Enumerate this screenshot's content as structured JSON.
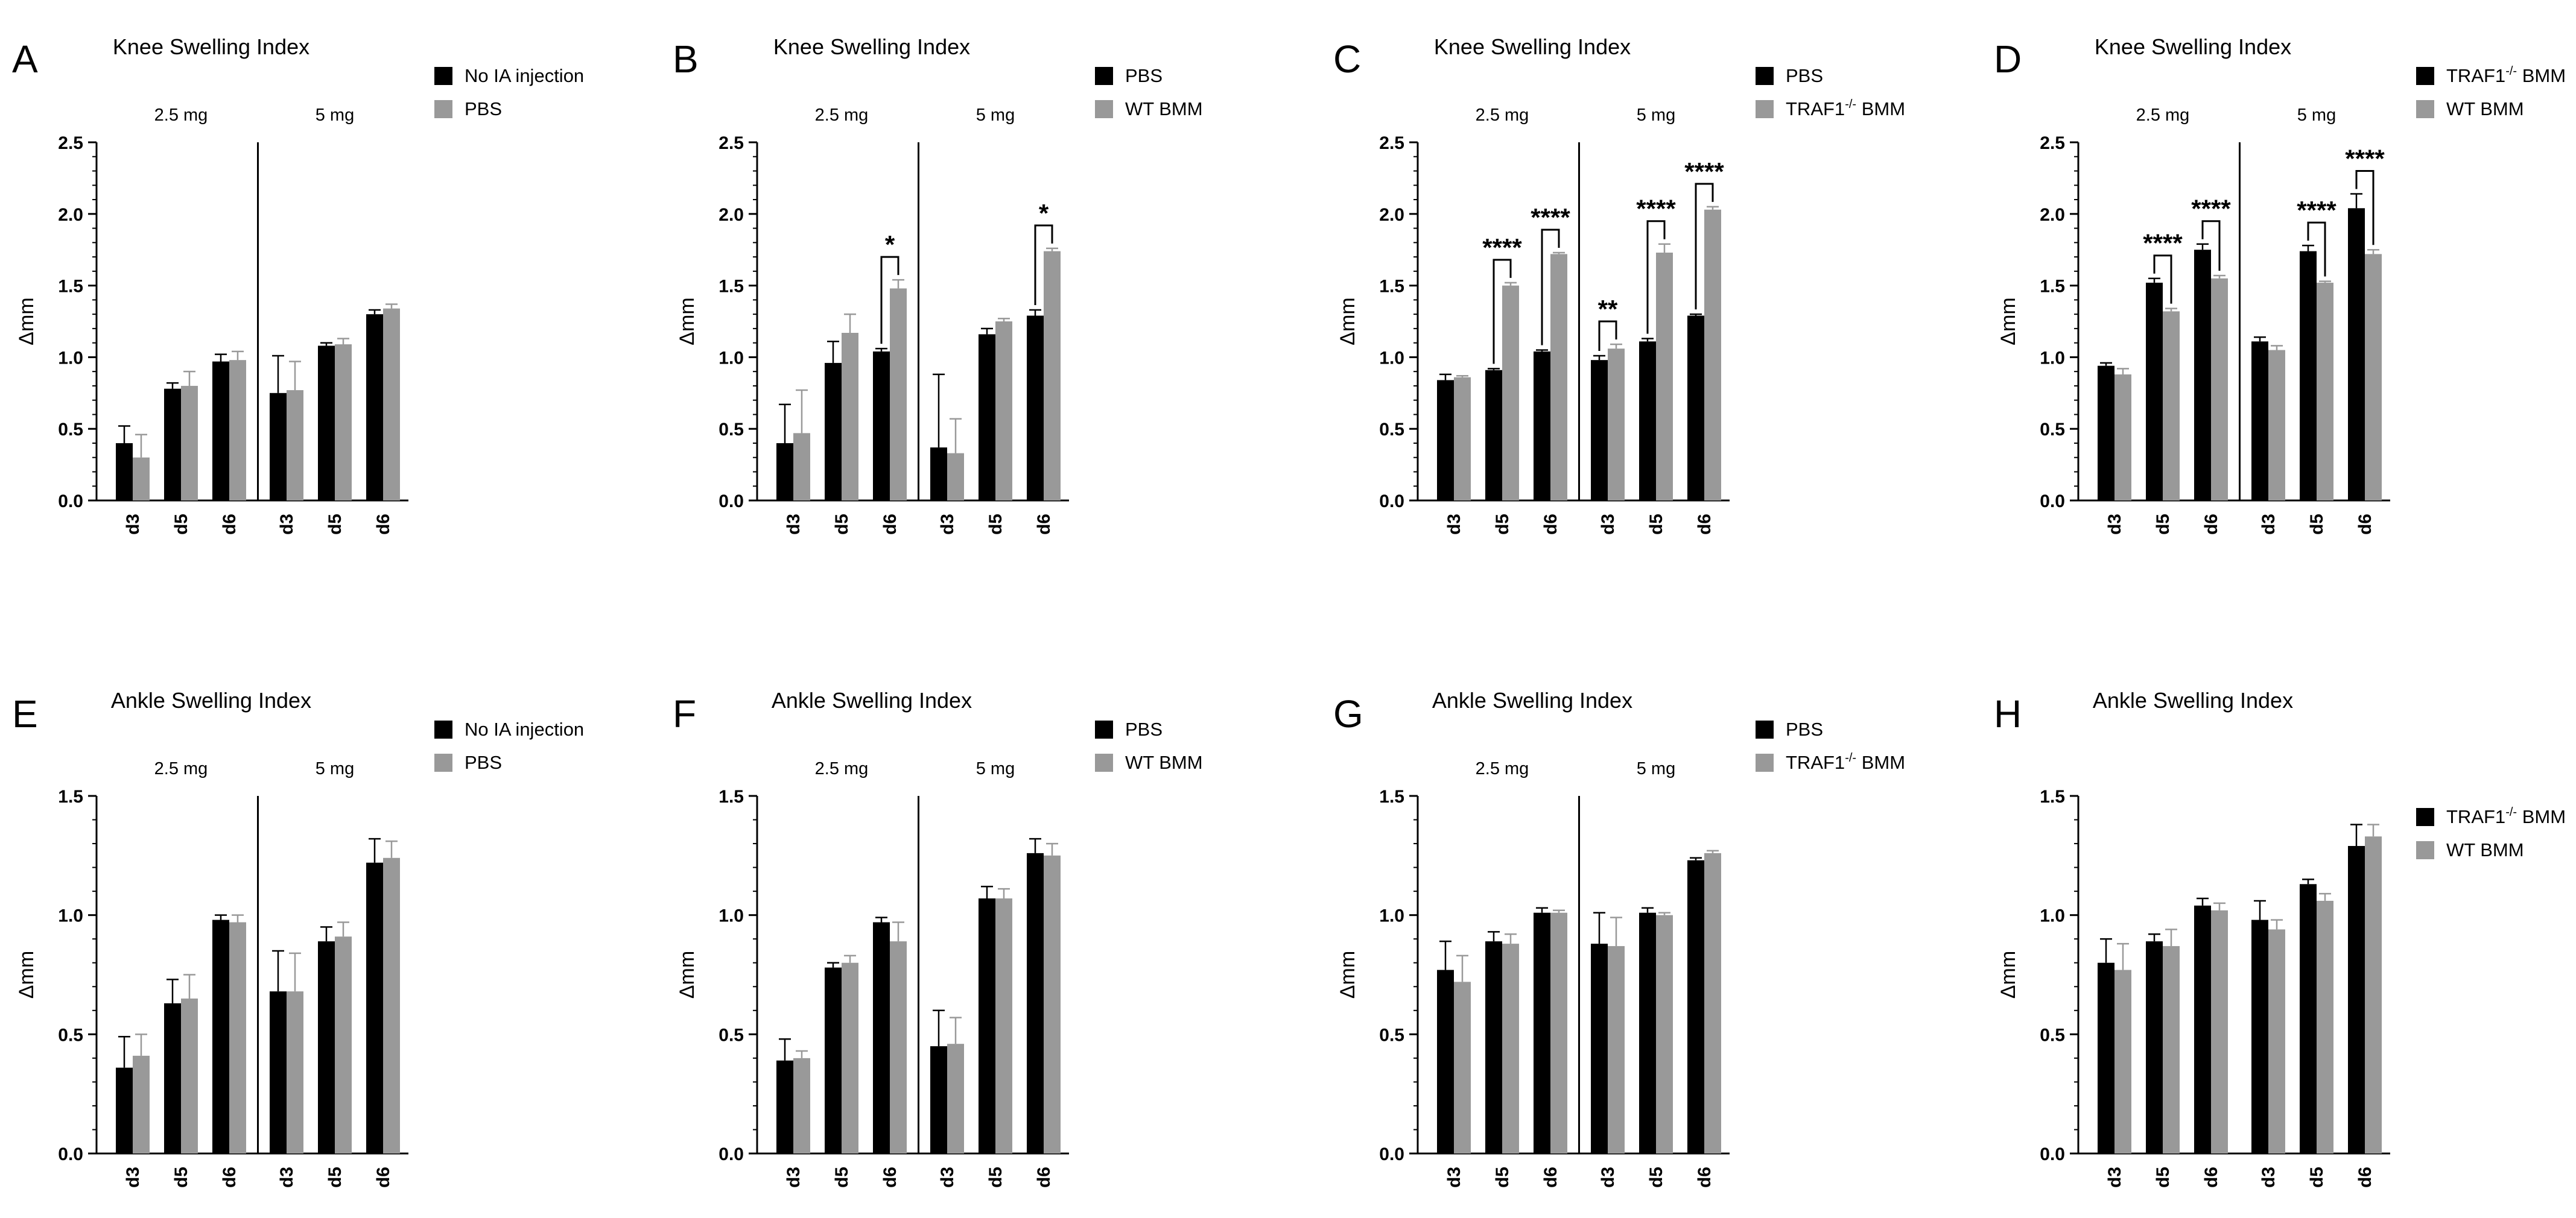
{
  "colors": {
    "series1": "#000000",
    "series2": "#999999",
    "axis": "#000000"
  },
  "chart_data": [
    {
      "panel": "A",
      "type": "bar",
      "title": "Knee Swelling Index",
      "ylabel": "Δmm",
      "ylim": [
        0,
        2.5
      ],
      "yticks": [
        "0.0",
        "0.5",
        "1.0",
        "1.5",
        "2.0",
        "2.5"
      ],
      "ytick_values": [
        0,
        0.5,
        1,
        1.5,
        2,
        2.5
      ],
      "categories": [
        "d3",
        "d5",
        "d6",
        "d3",
        "d5",
        "d6"
      ],
      "groups": [
        {
          "label": "2.5 mg",
          "from": 0,
          "to": 2
        },
        {
          "label": "5 mg",
          "from": 3,
          "to": 5
        }
      ],
      "legend_position": "top-right",
      "series": [
        {
          "name": "No IA injection",
          "values": [
            0.4,
            0.78,
            0.97,
            0.75,
            1.08,
            1.3
          ],
          "errors": [
            0.12,
            0.04,
            0.05,
            0.26,
            0.02,
            0.03
          ]
        },
        {
          "name": "PBS",
          "values": [
            0.3,
            0.8,
            0.98,
            0.77,
            1.09,
            1.34
          ],
          "errors": [
            0.16,
            0.1,
            0.06,
            0.2,
            0.04,
            0.03
          ]
        }
      ],
      "significance": []
    },
    {
      "panel": "B",
      "type": "bar",
      "title": "Knee Swelling Index",
      "ylabel": "Δmm",
      "ylim": [
        0,
        2.5
      ],
      "yticks": [
        "0.0",
        "0.5",
        "1.0",
        "1.5",
        "2.0",
        "2.5"
      ],
      "ytick_values": [
        0,
        0.5,
        1,
        1.5,
        2,
        2.5
      ],
      "categories": [
        "d3",
        "d5",
        "d6",
        "d3",
        "d5",
        "d6"
      ],
      "groups": [
        {
          "label": "2.5 mg",
          "from": 0,
          "to": 2
        },
        {
          "label": "5 mg",
          "from": 3,
          "to": 5
        }
      ],
      "legend_position": "top-right",
      "series": [
        {
          "name": "PBS",
          "values": [
            0.4,
            0.96,
            1.04,
            0.37,
            1.16,
            1.29
          ],
          "errors": [
            0.27,
            0.15,
            0.02,
            0.51,
            0.04,
            0.04
          ]
        },
        {
          "name": "WT BMM",
          "values": [
            0.47,
            1.17,
            1.48,
            0.33,
            1.25,
            1.74
          ],
          "errors": [
            0.3,
            0.13,
            0.06,
            0.24,
            0.02,
            0.02
          ]
        }
      ],
      "significance": [
        {
          "index": 2,
          "label": "*"
        },
        {
          "index": 5,
          "label": "*"
        }
      ]
    },
    {
      "panel": "C",
      "type": "bar",
      "title": "Knee Swelling Index",
      "ylabel": "Δmm",
      "ylim": [
        0,
        2.5
      ],
      "yticks": [
        "0.0",
        "0.5",
        "1.0",
        "1.5",
        "2.0",
        "2.5"
      ],
      "ytick_values": [
        0,
        0.5,
        1,
        1.5,
        2,
        2.5
      ],
      "categories": [
        "d3",
        "d5",
        "d6",
        "d3",
        "d5",
        "d6"
      ],
      "groups": [
        {
          "label": "2.5 mg",
          "from": 0,
          "to": 2
        },
        {
          "label": "5 mg",
          "from": 3,
          "to": 5
        }
      ],
      "legend_position": "top-right",
      "series": [
        {
          "name": "PBS",
          "values": [
            0.84,
            0.91,
            1.04,
            0.98,
            1.11,
            1.29
          ],
          "errors": [
            0.04,
            0.01,
            0.01,
            0.03,
            0.02,
            0.01
          ]
        },
        {
          "name": "TRAF1⁻/⁻ BMM",
          "values": [
            0.86,
            1.5,
            1.72,
            1.06,
            1.73,
            2.03
          ],
          "errors": [
            0.01,
            0.02,
            0.01,
            0.03,
            0.06,
            0.02
          ]
        }
      ],
      "significance": [
        {
          "index": 1,
          "label": "****"
        },
        {
          "index": 2,
          "label": "****"
        },
        {
          "index": 3,
          "label": "**"
        },
        {
          "index": 4,
          "label": "****"
        },
        {
          "index": 5,
          "label": "****"
        }
      ]
    },
    {
      "panel": "D",
      "type": "bar",
      "title": "Knee Swelling Index",
      "ylabel": "Δmm",
      "ylim": [
        0,
        2.5
      ],
      "yticks": [
        "0.0",
        "0.5",
        "1.0",
        "1.5",
        "2.0",
        "2.5"
      ],
      "ytick_values": [
        0,
        0.5,
        1,
        1.5,
        2,
        2.5
      ],
      "categories": [
        "d3",
        "d5",
        "d6",
        "d3",
        "d5",
        "d6"
      ],
      "groups": [
        {
          "label": "2.5 mg",
          "from": 0,
          "to": 2
        },
        {
          "label": "5 mg",
          "from": 3,
          "to": 5
        }
      ],
      "legend_position": "top-right",
      "series": [
        {
          "name": "TRAF1⁻/⁻ BMM",
          "values": [
            0.94,
            1.52,
            1.75,
            1.11,
            1.74,
            2.04
          ],
          "errors": [
            0.02,
            0.03,
            0.04,
            0.03,
            0.04,
            0.1
          ]
        },
        {
          "name": "WT BMM",
          "values": [
            0.88,
            1.32,
            1.55,
            1.05,
            1.52,
            1.72
          ],
          "errors": [
            0.04,
            0.02,
            0.02,
            0.03,
            0.01,
            0.03
          ]
        }
      ],
      "significance": [
        {
          "index": 1,
          "label": "****"
        },
        {
          "index": 2,
          "label": "****"
        },
        {
          "index": 4,
          "label": "****"
        },
        {
          "index": 5,
          "label": "****"
        }
      ]
    },
    {
      "panel": "E",
      "type": "bar",
      "title": "Ankle Swelling Index",
      "ylabel": "Δmm",
      "ylim": [
        0,
        1.5
      ],
      "yticks": [
        "0.0",
        "0.5",
        "1.0",
        "1.5"
      ],
      "ytick_values": [
        0,
        0.5,
        1,
        1.5
      ],
      "categories": [
        "d3",
        "d5",
        "d6",
        "d3",
        "d5",
        "d6"
      ],
      "groups": [
        {
          "label": "2.5 mg",
          "from": 0,
          "to": 2
        },
        {
          "label": "5 mg",
          "from": 3,
          "to": 5
        }
      ],
      "legend_position": "top-right",
      "series": [
        {
          "name": "No IA injection",
          "values": [
            0.36,
            0.63,
            0.98,
            0.68,
            0.89,
            1.22
          ],
          "errors": [
            0.13,
            0.1,
            0.02,
            0.17,
            0.06,
            0.1
          ]
        },
        {
          "name": "PBS",
          "values": [
            0.41,
            0.65,
            0.97,
            0.68,
            0.91,
            1.24
          ],
          "errors": [
            0.09,
            0.1,
            0.03,
            0.16,
            0.06,
            0.07
          ]
        }
      ],
      "significance": []
    },
    {
      "panel": "F",
      "type": "bar",
      "title": "Ankle Swelling Index",
      "ylabel": "Δmm",
      "ylim": [
        0,
        1.5
      ],
      "yticks": [
        "0.0",
        "0.5",
        "1.0",
        "1.5"
      ],
      "ytick_values": [
        0,
        0.5,
        1,
        1.5
      ],
      "categories": [
        "d3",
        "d5",
        "d6",
        "d3",
        "d5",
        "d6"
      ],
      "groups": [
        {
          "label": "2.5 mg",
          "from": 0,
          "to": 2
        },
        {
          "label": "5 mg",
          "from": 3,
          "to": 5
        }
      ],
      "legend_position": "top-right",
      "series": [
        {
          "name": "PBS",
          "values": [
            0.39,
            0.78,
            0.97,
            0.45,
            1.07,
            1.26
          ],
          "errors": [
            0.09,
            0.02,
            0.02,
            0.15,
            0.05,
            0.06
          ]
        },
        {
          "name": "WT BMM",
          "values": [
            0.4,
            0.8,
            0.89,
            0.46,
            1.07,
            1.25
          ],
          "errors": [
            0.03,
            0.03,
            0.08,
            0.11,
            0.04,
            0.05
          ]
        }
      ],
      "significance": []
    },
    {
      "panel": "G",
      "type": "bar",
      "title": "Ankle Swelling Index",
      "ylabel": "Δmm",
      "ylim": [
        0,
        1.5
      ],
      "yticks": [
        "0.0",
        "0.5",
        "1.0",
        "1.5"
      ],
      "ytick_values": [
        0,
        0.5,
        1,
        1.5
      ],
      "categories": [
        "d3",
        "d5",
        "d6",
        "d3",
        "d5",
        "d6"
      ],
      "groups": [
        {
          "label": "2.5 mg",
          "from": 0,
          "to": 2
        },
        {
          "label": "5 mg",
          "from": 3,
          "to": 5
        }
      ],
      "legend_position": "top-right",
      "series": [
        {
          "name": "PBS",
          "values": [
            0.77,
            0.89,
            1.01,
            0.88,
            1.01,
            1.23
          ],
          "errors": [
            0.12,
            0.04,
            0.02,
            0.13,
            0.02,
            0.01
          ]
        },
        {
          "name": "TRAF1⁻/⁻ BMM",
          "values": [
            0.72,
            0.88,
            1.01,
            0.87,
            1.0,
            1.26
          ],
          "errors": [
            0.11,
            0.04,
            0.01,
            0.12,
            0.01,
            0.01
          ]
        }
      ],
      "significance": []
    },
    {
      "panel": "H",
      "type": "bar",
      "title": "Ankle Swelling Index",
      "ylabel": "Δmm",
      "ylim": [
        0,
        1.5
      ],
      "yticks": [
        "0.0",
        "0.5",
        "1.0",
        "1.5"
      ],
      "ytick_values": [
        0,
        0.5,
        1,
        1.5
      ],
      "categories": [
        "d3",
        "d5",
        "d6",
        "d3",
        "d5",
        "d6"
      ],
      "groups": [],
      "legend_position": "right",
      "series": [
        {
          "name": "TRAF1⁻/⁻ BMM",
          "values": [
            0.8,
            0.89,
            1.04,
            0.98,
            1.13,
            1.29
          ],
          "errors": [
            0.1,
            0.03,
            0.03,
            0.08,
            0.02,
            0.09
          ]
        },
        {
          "name": "WT BMM",
          "values": [
            0.77,
            0.87,
            1.02,
            0.94,
            1.06,
            1.33
          ],
          "errors": [
            0.11,
            0.07,
            0.03,
            0.04,
            0.03,
            0.05
          ]
        }
      ],
      "significance": []
    }
  ]
}
